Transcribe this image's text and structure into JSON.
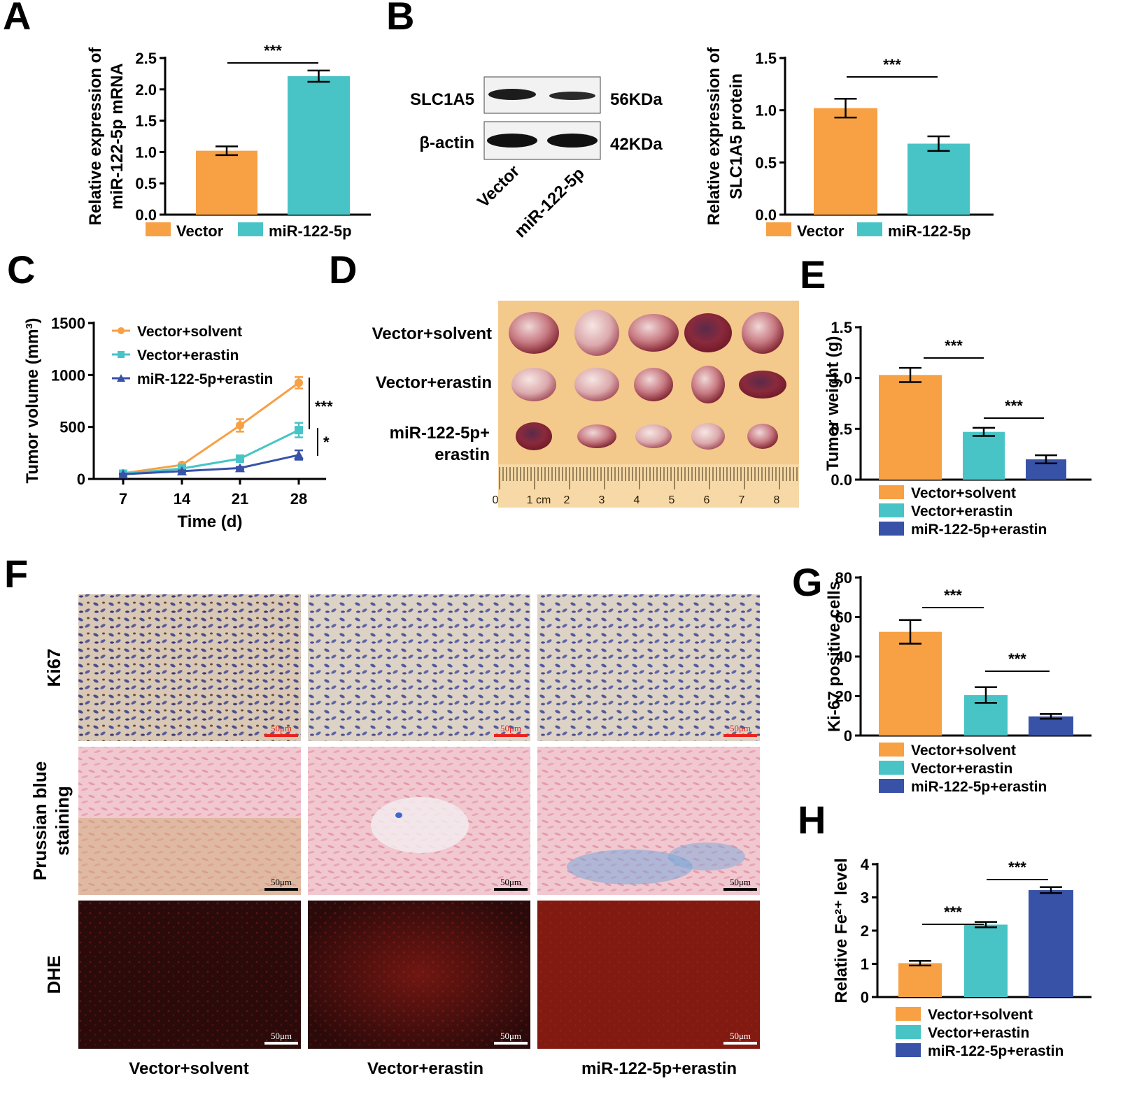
{
  "colors": {
    "vector": "#f7a044",
    "erastin": "#48c4c6",
    "mir": "#3852a8",
    "red_bar": "#e8231e"
  },
  "panel_letters": {
    "a": "A",
    "b": "B",
    "c": "C",
    "d": "D",
    "e": "E",
    "f": "F",
    "g": "G",
    "h": "H"
  },
  "western": {
    "bands": [
      "SLC1A5",
      "β-actin"
    ],
    "sizes": [
      "56KDa",
      "42KDa"
    ],
    "lanes": [
      "Vector",
      "miR-122-5p"
    ]
  },
  "photo": {
    "rows": [
      "Vector+solvent",
      "Vector+erastin",
      "miR-122-5p+",
      "erastin"
    ],
    "ruler": [
      "0",
      "1 cm",
      "2",
      "3",
      "4",
      "5",
      "6",
      "7",
      "8"
    ]
  },
  "histology": {
    "rows": [
      "Ki67",
      "Prussian blue",
      "staining",
      "DHE"
    ],
    "columns": [
      "Vector+solvent",
      "Vector+erastin",
      "miR-122-5p+erastin"
    ],
    "scale": "50μm"
  },
  "chart_data": [
    {
      "id": "A",
      "type": "bar",
      "categories": [
        "Vector",
        "miR-122-5p"
      ],
      "values": [
        1.02,
        2.21
      ],
      "errors": [
        0.07,
        0.09
      ],
      "ylabel": [
        "Relative expression of",
        "miR-122-5p mRNA"
      ],
      "ylim": [
        0,
        2.5
      ],
      "yticks": [
        "0.0",
        "0.5",
        "1.0",
        "1.5",
        "2.0",
        "2.5"
      ],
      "significance": [
        "***"
      ],
      "legend": [
        "Vector",
        "miR-122-5p"
      ]
    },
    {
      "id": "B",
      "type": "bar",
      "categories": [
        "Vector",
        "miR-122-5p"
      ],
      "values": [
        1.02,
        0.68
      ],
      "errors": [
        0.09,
        0.07
      ],
      "ylabel": [
        "Relative expression of",
        "SLC1A5 protein"
      ],
      "ylim": [
        0,
        1.5
      ],
      "yticks": [
        "0.0",
        "0.5",
        "1.0",
        "1.5"
      ],
      "significance": [
        "***"
      ],
      "legend": [
        "Vector",
        "miR-122-5p"
      ]
    },
    {
      "id": "C",
      "type": "line",
      "x": [
        7,
        14,
        21,
        28
      ],
      "xticks": [
        "7",
        "14",
        "21",
        "28"
      ],
      "xlabel": "Time (d)",
      "ylabel": "Tumor volume (mm³)",
      "ylim": [
        0,
        1500
      ],
      "yticks": [
        "0",
        "500",
        "1000",
        "1500"
      ],
      "series": [
        {
          "name": "Vector+solvent",
          "values": [
            55,
            135,
            515,
            925
          ],
          "errors": [
            10,
            12,
            60,
            55
          ]
        },
        {
          "name": "Vector+erastin",
          "values": [
            50,
            100,
            195,
            470
          ],
          "errors": [
            8,
            10,
            20,
            70
          ]
        },
        {
          "name": "miR-122-5p+erastin",
          "values": [
            45,
            75,
            105,
            230
          ],
          "errors": [
            6,
            8,
            12,
            45
          ]
        }
      ],
      "significance": [
        "***",
        "*"
      ]
    },
    {
      "id": "E",
      "type": "bar",
      "categories": [
        "Vector+solvent",
        "Vector+erastin",
        "miR-122-5p+erastin"
      ],
      "values": [
        1.03,
        0.47,
        0.2
      ],
      "errors": [
        0.07,
        0.04,
        0.04
      ],
      "ylabel": [
        "Tumor weight (g)"
      ],
      "ylim": [
        0,
        1.5
      ],
      "yticks": [
        "0.0",
        "0.5",
        "1.0",
        "1.5"
      ],
      "significance": [
        "***",
        "***"
      ],
      "legend": [
        "Vector+solvent",
        "Vector+erastin",
        "miR-122-5p+erastin"
      ]
    },
    {
      "id": "G",
      "type": "bar",
      "categories": [
        "Vector+solvent",
        "Vector+erastin",
        "miR-122-5p+erastin"
      ],
      "values": [
        52.5,
        20.5,
        9.7
      ],
      "errors": [
        6,
        4,
        1.2
      ],
      "ylabel": [
        "Ki-67 positive cells"
      ],
      "ylim": [
        0,
        80
      ],
      "yticks": [
        "0",
        "20",
        "40",
        "60",
        "80"
      ],
      "significance": [
        "***",
        "***"
      ],
      "legend": [
        "Vector+solvent",
        "Vector+erastin",
        "miR-122-5p+erastin"
      ]
    },
    {
      "id": "H",
      "type": "bar",
      "categories": [
        "Vector+solvent",
        "Vector+erastin",
        "miR-122-5p+erastin"
      ],
      "values": [
        1.02,
        2.18,
        3.22
      ],
      "errors": [
        0.07,
        0.08,
        0.09
      ],
      "ylabel": [
        "Relative Fe²⁺ level"
      ],
      "ylim": [
        0,
        4
      ],
      "yticks": [
        "0",
        "1",
        "2",
        "3",
        "4"
      ],
      "significance": [
        "***",
        "***"
      ],
      "legend": [
        "Vector+solvent",
        "Vector+erastin",
        "miR-122-5p+erastin"
      ]
    }
  ]
}
